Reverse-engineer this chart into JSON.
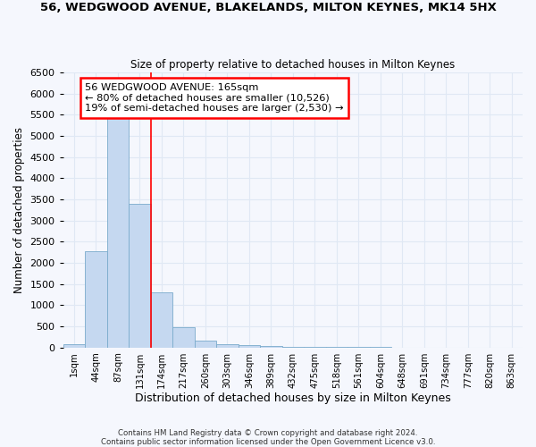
{
  "title": "56, WEDGWOOD AVENUE, BLAKELANDS, MILTON KEYNES, MK14 5HX",
  "subtitle": "Size of property relative to detached houses in Milton Keynes",
  "xlabel": "Distribution of detached houses by size in Milton Keynes",
  "ylabel": "Number of detached properties",
  "bar_color": "#c5d8f0",
  "bar_edge_color": "#7aabcc",
  "categories": [
    "1sqm",
    "44sqm",
    "87sqm",
    "131sqm",
    "174sqm",
    "217sqm",
    "260sqm",
    "303sqm",
    "346sqm",
    "389sqm",
    "432sqm",
    "475sqm",
    "518sqm",
    "561sqm",
    "604sqm",
    "648sqm",
    "691sqm",
    "734sqm",
    "777sqm",
    "820sqm",
    "863sqm"
  ],
  "values": [
    75,
    2280,
    5440,
    3390,
    1300,
    480,
    165,
    80,
    55,
    40,
    25,
    15,
    10,
    8,
    5,
    4,
    3,
    3,
    2,
    2,
    2
  ],
  "ylim": [
    0,
    6500
  ],
  "yticks": [
    0,
    500,
    1000,
    1500,
    2000,
    2500,
    3000,
    3500,
    4000,
    4500,
    5000,
    5500,
    6000,
    6500
  ],
  "vline_x": 3.5,
  "ann_line1": "56 WEDGWOOD AVENUE: 165sqm",
  "ann_line2": "← 80% of detached houses are smaller (10,526)",
  "ann_line3": "19% of semi-detached houses are larger (2,530) →",
  "bg_color": "#f5f7fd",
  "grid_color": "#e0e8f4",
  "footnote_line1": "Contains HM Land Registry data © Crown copyright and database right 2024.",
  "footnote_line2": "Contains public sector information licensed under the Open Government Licence v3.0."
}
